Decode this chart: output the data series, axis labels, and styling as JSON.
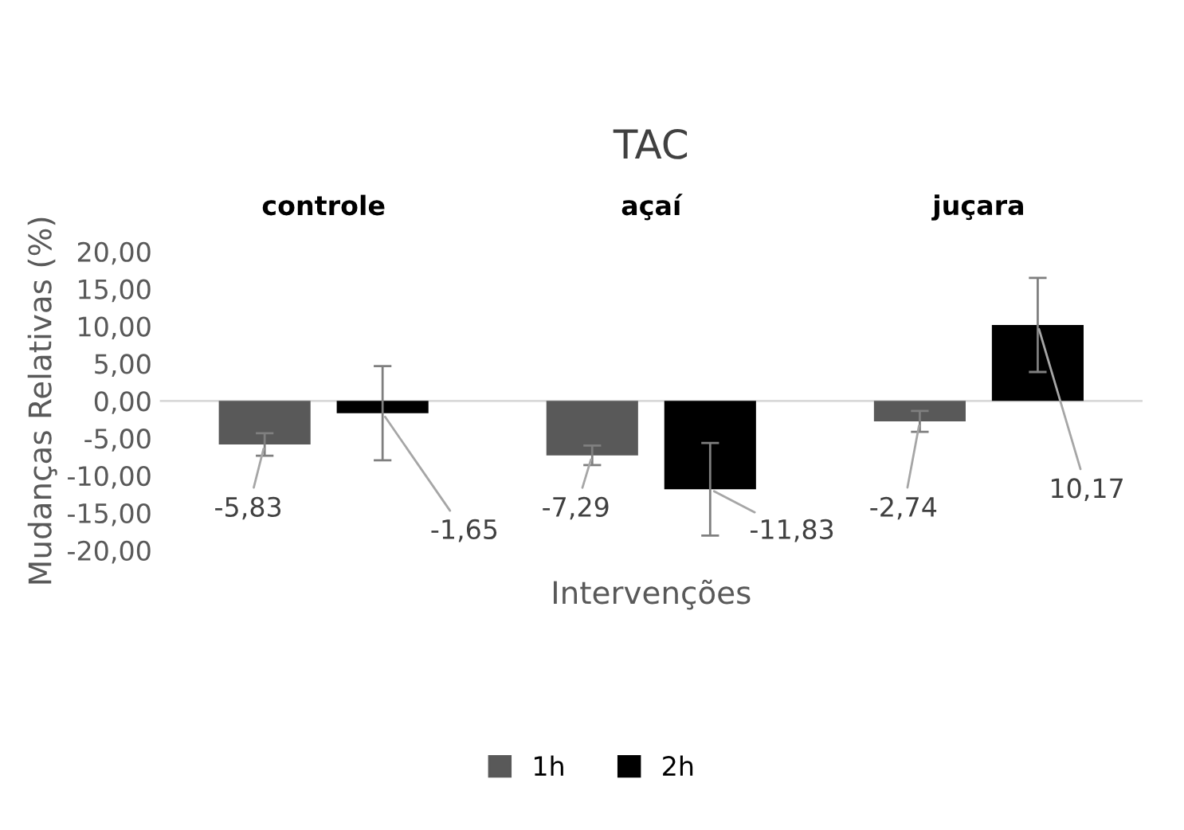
{
  "chart_data": {
    "type": "bar",
    "title": "TAC",
    "xlabel": "Intervenções",
    "ylabel": "Mudanças Relativas (%)",
    "categories": [
      "controle",
      "açaí",
      "juçara"
    ],
    "series": [
      {
        "name": "1h",
        "color": "#595959",
        "values": [
          -5.83,
          -7.29,
          -2.74
        ],
        "errors": [
          1.5,
          1.3,
          1.4
        ],
        "value_labels": [
          "-5,83",
          "-7,29",
          "-2,74"
        ]
      },
      {
        "name": "2h",
        "color": "#000000",
        "values": [
          -1.65,
          -11.83,
          10.17
        ],
        "errors": [
          6.3,
          6.2,
          6.3
        ],
        "value_labels": [
          "-1,65",
          "-11,83",
          "10,17"
        ]
      }
    ],
    "ylim": [
      -20,
      20
    ],
    "yticks": [
      {
        "value": -20,
        "label": "-20,00"
      },
      {
        "value": -15,
        "label": "-15,00"
      },
      {
        "value": -10,
        "label": "-10,00"
      },
      {
        "value": -5,
        "label": "-5,00"
      },
      {
        "value": 0,
        "label": "0,00"
      },
      {
        "value": 5,
        "label": "5,00"
      },
      {
        "value": 10,
        "label": "10,00"
      },
      {
        "value": 15,
        "label": "15,00"
      },
      {
        "value": 20,
        "label": "20,00"
      }
    ],
    "ref_lines": [
      {
        "axis": "y",
        "value": 0,
        "color": "#d9d9d9"
      }
    ],
    "grid": false,
    "legend": "bottom"
  }
}
